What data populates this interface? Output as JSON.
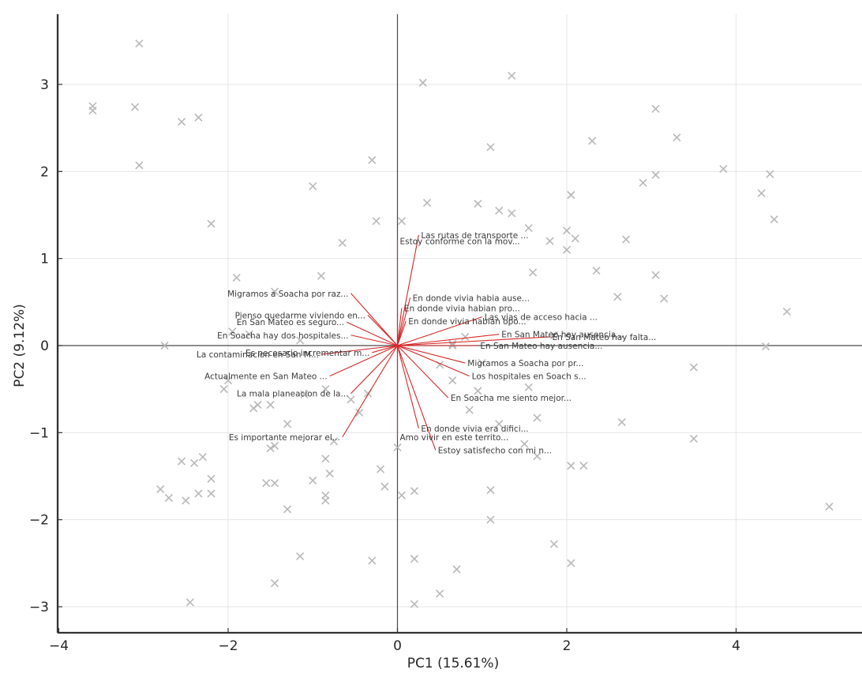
{
  "chart_data": {
    "type": "scatter",
    "subtype": "pca-biplot",
    "xlabel": "PC1 (15.61%)",
    "ylabel": "PC2 (9.12%)",
    "xlim": [
      -4.2,
      5.4
    ],
    "ylim": [
      -3.3,
      3.8
    ],
    "xticks": [
      -4,
      -2,
      0,
      2,
      4
    ],
    "yticks": [
      -3,
      -2,
      -1,
      0,
      1,
      2,
      3
    ],
    "xtick_labels": [
      "−4",
      "−2",
      "0",
      "2",
      "4"
    ],
    "ytick_labels": [
      "−3",
      "−2",
      "−1",
      "0",
      "1",
      "2",
      "3"
    ],
    "grid": true,
    "zero_lines": true,
    "colors": {
      "scores": "#b8b8b8",
      "loadings": "#d62728",
      "labels": "#3a3a3a",
      "axes": "#333333"
    },
    "scores": [
      [
        -3.6,
        2.75
      ],
      [
        -3.6,
        2.7
      ],
      [
        -3.1,
        2.74
      ],
      [
        -3.05,
        3.47
      ],
      [
        -3.05,
        2.07
      ],
      [
        -2.55,
        2.57
      ],
      [
        -2.35,
        2.62
      ],
      [
        -2.2,
        1.4
      ],
      [
        -1.9,
        0.78
      ],
      [
        -1.75,
        0.13
      ],
      [
        -1.95,
        0.16
      ],
      [
        -1.45,
        0.62
      ],
      [
        -1.0,
        1.83
      ],
      [
        -0.9,
        0.8
      ],
      [
        -0.65,
        1.18
      ],
      [
        -0.3,
        2.13
      ],
      [
        -0.25,
        1.43
      ],
      [
        0.05,
        1.43
      ],
      [
        0.35,
        1.64
      ],
      [
        0.3,
        3.02
      ],
      [
        1.35,
        3.1
      ],
      [
        1.1,
        2.28
      ],
      [
        0.95,
        1.63
      ],
      [
        1.2,
        1.55
      ],
      [
        1.35,
        1.52
      ],
      [
        1.55,
        1.35
      ],
      [
        1.6,
        0.84
      ],
      [
        1.8,
        1.2
      ],
      [
        2.0,
        1.32
      ],
      [
        2.05,
        1.73
      ],
      [
        2.1,
        1.23
      ],
      [
        2.0,
        1.1
      ],
      [
        2.3,
        2.35
      ],
      [
        2.35,
        0.86
      ],
      [
        2.6,
        0.56
      ],
      [
        2.7,
        1.22
      ],
      [
        2.9,
        1.87
      ],
      [
        3.05,
        2.72
      ],
      [
        3.05,
        1.96
      ],
      [
        3.05,
        0.81
      ],
      [
        3.15,
        0.54
      ],
      [
        3.3,
        2.39
      ],
      [
        3.85,
        2.03
      ],
      [
        4.3,
        1.75
      ],
      [
        4.4,
        1.97
      ],
      [
        4.45,
        1.45
      ],
      [
        4.6,
        0.39
      ],
      [
        4.35,
        -0.01
      ],
      [
        3.5,
        -0.25
      ],
      [
        3.5,
        -1.07
      ],
      [
        2.65,
        -0.88
      ],
      [
        2.2,
        -1.38
      ],
      [
        2.05,
        -1.38
      ],
      [
        1.85,
        -2.28
      ],
      [
        2.05,
        -2.5
      ],
      [
        1.1,
        -1.66
      ],
      [
        1.1,
        -2.0
      ],
      [
        0.7,
        -2.57
      ],
      [
        0.5,
        -2.85
      ],
      [
        0.2,
        -2.45
      ],
      [
        0.2,
        -2.97
      ],
      [
        0.2,
        -1.67
      ],
      [
        0.05,
        -1.72
      ],
      [
        0.0,
        -1.17
      ],
      [
        -0.2,
        -1.42
      ],
      [
        -0.15,
        -1.62
      ],
      [
        -0.3,
        -2.47
      ],
      [
        -0.75,
        -1.1
      ],
      [
        -0.85,
        -1.3
      ],
      [
        -0.8,
        -1.47
      ],
      [
        -1.0,
        -1.55
      ],
      [
        -0.85,
        -1.72
      ],
      [
        -0.85,
        -1.78
      ],
      [
        -1.3,
        -1.88
      ],
      [
        -1.45,
        -1.58
      ],
      [
        -1.45,
        -1.15
      ],
      [
        -1.55,
        -1.58
      ],
      [
        -1.5,
        -1.18
      ],
      [
        -1.3,
        -0.9
      ],
      [
        -1.5,
        -0.68
      ],
      [
        -1.65,
        -0.68
      ],
      [
        -1.7,
        -0.72
      ],
      [
        -2.0,
        -0.4
      ],
      [
        -2.05,
        -0.5
      ],
      [
        -2.2,
        -1.53
      ],
      [
        -2.2,
        -1.7
      ],
      [
        -2.3,
        -1.28
      ],
      [
        -2.4,
        -1.35
      ],
      [
        -2.35,
        -1.7
      ],
      [
        -2.55,
        -1.33
      ],
      [
        -2.5,
        -1.78
      ],
      [
        -2.7,
        -1.75
      ],
      [
        -2.8,
        -1.65
      ],
      [
        -2.75,
        0.0
      ],
      [
        -2.45,
        -2.95
      ],
      [
        -1.45,
        -2.73
      ],
      [
        -1.15,
        -2.42
      ],
      [
        -1.1,
        -0.56
      ],
      [
        -1.15,
        0.06
      ],
      [
        -0.85,
        -0.5
      ],
      [
        -0.55,
        -0.62
      ],
      [
        -0.45,
        -0.77
      ],
      [
        -0.35,
        -0.55
      ],
      [
        0.65,
        0.0
      ],
      [
        0.65,
        0.02
      ],
      [
        0.85,
        -0.74
      ],
      [
        0.95,
        -0.52
      ],
      [
        1.2,
        -0.9
      ],
      [
        1.55,
        -0.48
      ],
      [
        1.65,
        -0.83
      ],
      [
        1.5,
        -1.13
      ],
      [
        1.65,
        -1.27
      ],
      [
        0.65,
        -0.4
      ],
      [
        0.5,
        -0.22
      ],
      [
        1.0,
        -0.2
      ],
      [
        5.1,
        -1.85
      ],
      [
        0.8,
        0.1
      ],
      [
        1.85,
        0.12
      ]
    ],
    "loadings": [
      {
        "label": "Las rutas de transporte ...",
        "x": 0.25,
        "y": 1.27
      },
      {
        "label": "Estoy conforme con la mov...",
        "x": 0.0,
        "y": 1.2
      },
      {
        "label": "Migramos a Soacha por raz...",
        "x": -0.55,
        "y": 0.6
      },
      {
        "label": "En donde vivia habia ause...",
        "x": 0.15,
        "y": 0.55
      },
      {
        "label": "En donde vivia habian pro...",
        "x": 0.05,
        "y": 0.43
      },
      {
        "label": "Las vias de acceso hacia ...",
        "x": 1.0,
        "y": 0.33
      },
      {
        "label": "Pienso quedarme viviendo en...",
        "x": -0.35,
        "y": 0.35
      },
      {
        "label": "En San Mateo es seguro...",
        "x": -0.6,
        "y": 0.27
      },
      {
        "label": "En donde vivia habian opo...",
        "x": 0.1,
        "y": 0.28
      },
      {
        "label": "En Soacha hay dos hospitales...",
        "x": -0.55,
        "y": 0.12
      },
      {
        "label": "En San Mateo hay ausencia...",
        "x": 1.2,
        "y": 0.13
      },
      {
        "label": "En San Mateo hay falta...",
        "x": 1.8,
        "y": 0.1
      },
      {
        "label": "En San Mateo hay ausencia...",
        "x": 0.95,
        "y": 0.0
      },
      {
        "label": "Es necesario incrementar m...",
        "x": -0.3,
        "y": -0.08
      },
      {
        "label": "La contaminacion en San M...",
        "x": -0.9,
        "y": -0.1
      },
      {
        "label": "Migramos a Soacha por pr...",
        "x": 0.8,
        "y": -0.2
      },
      {
        "label": "Actualmente en San Mateo ...",
        "x": -0.8,
        "y": -0.35
      },
      {
        "label": "Los hospitales en Soach s...",
        "x": 0.85,
        "y": -0.35
      },
      {
        "label": "La mala planeacion de la...",
        "x": -0.55,
        "y": -0.55
      },
      {
        "label": "En Soacha me siento mejor...",
        "x": 0.6,
        "y": -0.6
      },
      {
        "label": "En donde vivia era difici...",
        "x": 0.25,
        "y": -0.95
      },
      {
        "label": "Es importante mejorar el...",
        "x": -0.65,
        "y": -1.05
      },
      {
        "label": "Amo vivir en este territo...",
        "x": 0.0,
        "y": -1.05
      },
      {
        "label": "Estoy satisfecho con mi n...",
        "x": 0.45,
        "y": -1.2
      }
    ]
  }
}
